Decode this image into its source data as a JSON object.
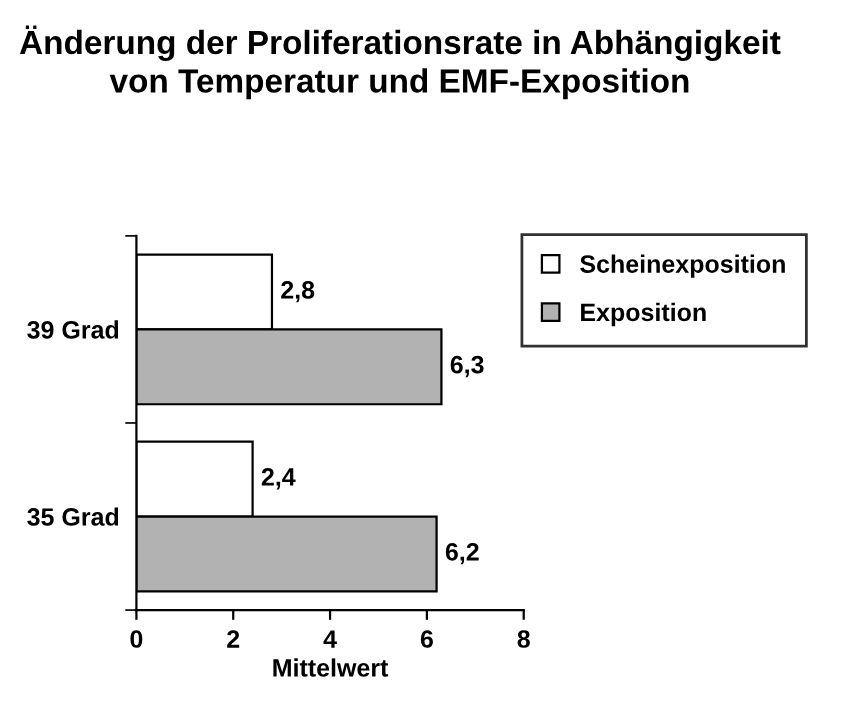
{
  "chart_data": {
    "type": "bar",
    "orientation": "horizontal",
    "title": "Änderung der Proliferationsrate in Abhängigkeit von Temperatur und EMF-Exposition",
    "xlabel": "Mittelwert",
    "categories": [
      "39 Grad",
      "35 Grad"
    ],
    "series": [
      {
        "name": "Scheinexposition",
        "color": "#ffffff",
        "values": [
          2.8,
          2.4
        ],
        "value_labels": [
          "2,8",
          "2,4"
        ]
      },
      {
        "name": "Exposition",
        "color": "#b2b2b2",
        "values": [
          6.3,
          6.2
        ],
        "value_labels": [
          "6,3",
          "6,2"
        ]
      }
    ],
    "xlim": [
      0,
      8
    ],
    "xticks": [
      0,
      2,
      4,
      6,
      8
    ],
    "grid": false,
    "legend": "top right"
  }
}
